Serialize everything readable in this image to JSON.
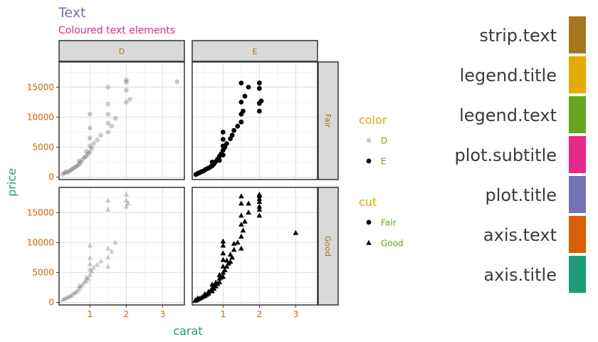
{
  "colors": {
    "strip_text": "#A6761D",
    "legend_title": "#E6AB02",
    "legend_text": "#66A61E",
    "plot_subtitle": "#E7298A",
    "plot_title": "#7570B3",
    "axis_text": "#D95F02",
    "axis_title": "#1B9E77"
  },
  "swatches": [
    {
      "label": "strip.text",
      "color": "#A6761D"
    },
    {
      "label": "legend.title",
      "color": "#E6AB02"
    },
    {
      "label": "legend.text",
      "color": "#66A61E"
    },
    {
      "label": "plot.subtitle",
      "color": "#E7298A"
    },
    {
      "label": "plot.title",
      "color": "#7570B3"
    },
    {
      "label": "axis.text",
      "color": "#D95F02"
    },
    {
      "label": "axis.title",
      "color": "#1B9E77"
    }
  ],
  "chart_data": {
    "type": "scatter",
    "title": "Text",
    "subtitle": "Coloured text elements",
    "xlabel": "carat",
    "ylabel": "price",
    "xlim": [
      0.15,
      3.6
    ],
    "ylim": [
      -400,
      19200
    ],
    "x_ticks": [
      1,
      2,
      3
    ],
    "y_ticks": [
      0,
      5000,
      10000,
      15000
    ],
    "grid": true,
    "facet_cols": [
      "D",
      "E"
    ],
    "facet_rows": [
      "Fair",
      "Good"
    ],
    "legends": [
      {
        "title": "color",
        "entries": [
          {
            "label": "D",
            "shape": "circle",
            "alpha": 0.2
          },
          {
            "label": "E",
            "shape": "circle",
            "alpha": 1
          }
        ]
      },
      {
        "title": "cut",
        "entries": [
          {
            "label": "Fair",
            "shape": "circle"
          },
          {
            "label": "Good",
            "shape": "triangle"
          }
        ]
      }
    ],
    "legend_position": "right",
    "series": [
      {
        "color": "D",
        "cut": "Fair",
        "shape": "circle",
        "alpha": 0.2,
        "points": [
          [
            0.25,
            500
          ],
          [
            0.3,
            700
          ],
          [
            0.35,
            900
          ],
          [
            0.4,
            800
          ],
          [
            0.45,
            1100
          ],
          [
            0.5,
            1300
          ],
          [
            0.55,
            1500
          ],
          [
            0.6,
            1700
          ],
          [
            0.65,
            1900
          ],
          [
            0.7,
            2100
          ],
          [
            0.7,
            2700
          ],
          [
            0.75,
            2500
          ],
          [
            0.8,
            3000
          ],
          [
            0.85,
            3300
          ],
          [
            0.9,
            3500
          ],
          [
            0.9,
            4300
          ],
          [
            0.95,
            3900
          ],
          [
            1.0,
            4200
          ],
          [
            1.0,
            5200
          ],
          [
            1.0,
            6500
          ],
          [
            1.0,
            8200
          ],
          [
            1.0,
            10500
          ],
          [
            1.05,
            4800
          ],
          [
            1.1,
            5600
          ],
          [
            1.2,
            6200
          ],
          [
            1.3,
            7000
          ],
          [
            1.5,
            7500
          ],
          [
            1.5,
            9000
          ],
          [
            1.5,
            10500
          ],
          [
            1.5,
            12200
          ],
          [
            1.5,
            15000
          ],
          [
            1.6,
            8500
          ],
          [
            1.7,
            9800
          ],
          [
            2.0,
            12500
          ],
          [
            2.0,
            14500
          ],
          [
            2.0,
            15800
          ],
          [
            2.0,
            16200
          ],
          [
            2.1,
            13000
          ],
          [
            3.4,
            15900
          ]
        ]
      },
      {
        "color": "E",
        "cut": "Fair",
        "shape": "circle",
        "alpha": 1,
        "points": [
          [
            0.25,
            450
          ],
          [
            0.3,
            600
          ],
          [
            0.35,
            750
          ],
          [
            0.4,
            900
          ],
          [
            0.45,
            1000
          ],
          [
            0.5,
            1200
          ],
          [
            0.55,
            1400
          ],
          [
            0.6,
            1500
          ],
          [
            0.65,
            1700
          ],
          [
            0.7,
            1900
          ],
          [
            0.7,
            2500
          ],
          [
            0.75,
            2200
          ],
          [
            0.8,
            2600
          ],
          [
            0.85,
            3000
          ],
          [
            0.9,
            2800
          ],
          [
            0.9,
            3500
          ],
          [
            0.95,
            3900
          ],
          [
            1.0,
            3700
          ],
          [
            1.0,
            4500
          ],
          [
            1.0,
            5200
          ],
          [
            1.0,
            6300
          ],
          [
            1.0,
            7500
          ],
          [
            1.05,
            5000
          ],
          [
            1.1,
            5600
          ],
          [
            1.2,
            6400
          ],
          [
            1.25,
            7000
          ],
          [
            1.3,
            7800
          ],
          [
            1.4,
            8500
          ],
          [
            1.5,
            9200
          ],
          [
            1.5,
            10500
          ],
          [
            1.5,
            12500
          ],
          [
            1.5,
            15700
          ],
          [
            1.55,
            11000
          ],
          [
            1.6,
            13500
          ],
          [
            1.7,
            15000
          ],
          [
            2.0,
            11000
          ],
          [
            2.0,
            12300
          ],
          [
            2.0,
            14800
          ],
          [
            2.0,
            15700
          ],
          [
            2.05,
            12700
          ]
        ]
      },
      {
        "color": "D",
        "cut": "Good",
        "shape": "triangle",
        "alpha": 0.2,
        "points": [
          [
            0.25,
            500
          ],
          [
            0.3,
            600
          ],
          [
            0.35,
            800
          ],
          [
            0.4,
            900
          ],
          [
            0.45,
            1100
          ],
          [
            0.5,
            1200
          ],
          [
            0.55,
            1500
          ],
          [
            0.6,
            1700
          ],
          [
            0.65,
            1900
          ],
          [
            0.7,
            2200
          ],
          [
            0.7,
            2800
          ],
          [
            0.75,
            2600
          ],
          [
            0.8,
            3000
          ],
          [
            0.85,
            3400
          ],
          [
            0.9,
            3600
          ],
          [
            0.9,
            4200
          ],
          [
            0.95,
            4000
          ],
          [
            1.0,
            4600
          ],
          [
            1.0,
            5500
          ],
          [
            1.0,
            6400
          ],
          [
            1.0,
            7400
          ],
          [
            1.0,
            9500
          ],
          [
            1.05,
            5200
          ],
          [
            1.1,
            5800
          ],
          [
            1.2,
            6300
          ],
          [
            1.3,
            6900
          ],
          [
            1.5,
            6000
          ],
          [
            1.5,
            7500
          ],
          [
            1.5,
            9000
          ],
          [
            1.5,
            15500
          ],
          [
            1.5,
            17000
          ],
          [
            1.6,
            8500
          ],
          [
            1.7,
            10000
          ],
          [
            2.0,
            16000
          ],
          [
            2.0,
            17000
          ],
          [
            2.0,
            18000
          ],
          [
            2.05,
            16500
          ]
        ]
      },
      {
        "color": "E",
        "cut": "Good",
        "shape": "triangle",
        "alpha": 1,
        "points": [
          [
            0.23,
            300
          ],
          [
            0.25,
            400
          ],
          [
            0.3,
            500
          ],
          [
            0.3,
            700
          ],
          [
            0.35,
            650
          ],
          [
            0.4,
            800
          ],
          [
            0.45,
            1000
          ],
          [
            0.5,
            1100
          ],
          [
            0.5,
            1400
          ],
          [
            0.55,
            1300
          ],
          [
            0.6,
            1500
          ],
          [
            0.6,
            1800
          ],
          [
            0.65,
            1900
          ],
          [
            0.7,
            1900
          ],
          [
            0.7,
            2400
          ],
          [
            0.7,
            3000
          ],
          [
            0.75,
            2300
          ],
          [
            0.75,
            2800
          ],
          [
            0.8,
            2700
          ],
          [
            0.8,
            3300
          ],
          [
            0.85,
            3100
          ],
          [
            0.9,
            3400
          ],
          [
            0.9,
            4000
          ],
          [
            0.9,
            4600
          ],
          [
            0.95,
            4200
          ],
          [
            1.0,
            4300
          ],
          [
            1.0,
            5000
          ],
          [
            1.0,
            6000
          ],
          [
            1.0,
            7100
          ],
          [
            1.0,
            8200
          ],
          [
            1.0,
            9500
          ],
          [
            1.0,
            10200
          ],
          [
            1.05,
            5400
          ],
          [
            1.1,
            6000
          ],
          [
            1.1,
            7000
          ],
          [
            1.15,
            6500
          ],
          [
            1.2,
            6800
          ],
          [
            1.2,
            8000
          ],
          [
            1.25,
            7500
          ],
          [
            1.3,
            8800
          ],
          [
            1.3,
            9800
          ],
          [
            1.4,
            10000
          ],
          [
            1.5,
            9000
          ],
          [
            1.5,
            11000
          ],
          [
            1.5,
            13000
          ],
          [
            1.5,
            14500
          ],
          [
            1.5,
            16500
          ],
          [
            1.5,
            17700
          ],
          [
            1.55,
            12000
          ],
          [
            1.6,
            13500
          ],
          [
            1.7,
            15000
          ],
          [
            1.7,
            16500
          ],
          [
            2.0,
            14500
          ],
          [
            2.0,
            15500
          ],
          [
            2.0,
            16000
          ],
          [
            2.0,
            16800
          ],
          [
            2.0,
            17300
          ],
          [
            2.0,
            17800
          ],
          [
            2.0,
            18000
          ],
          [
            3.0,
            11600
          ]
        ]
      }
    ]
  }
}
